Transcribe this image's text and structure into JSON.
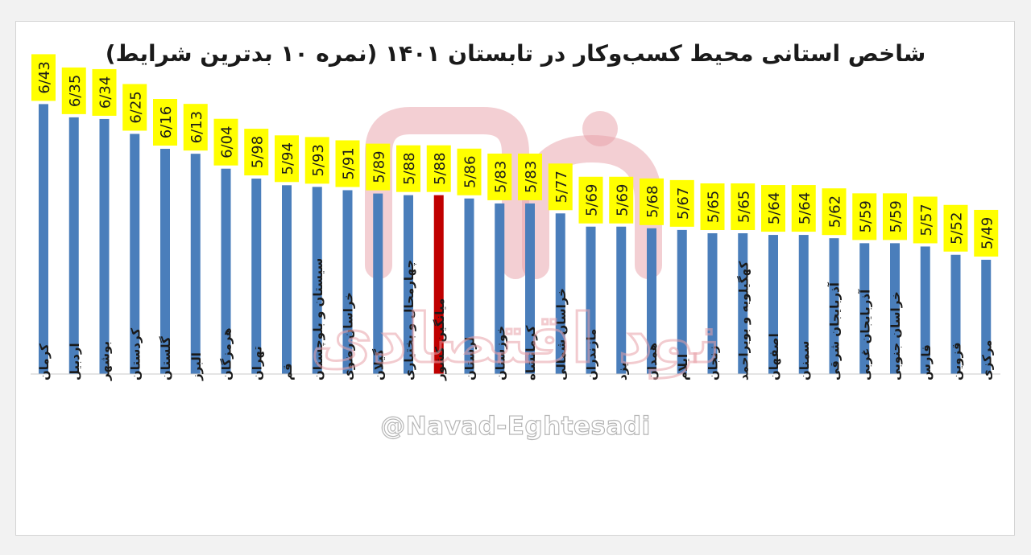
{
  "chart_data": {
    "type": "bar",
    "title": "شاخص استانی محیط کسب‌وکار در تابستان ۱۴۰۱ (نمره ۱۰ بدترین شرایط)",
    "categories": [
      "کرمان",
      "اردبیل",
      "بوشهر",
      "کردستان",
      "گلستان",
      "البرز",
      "هرمزگان",
      "تهران",
      "قم",
      "سیستان و بلوچستان",
      "خراسان رضوی",
      "گیلان",
      "چهارمحال و بختیاری",
      "میانگین کشور",
      "لرستان",
      "خوزستان",
      "کرمانشاه",
      "خراسان شمالی",
      "مازندران",
      "یزد",
      "همدان",
      "ایلام",
      "زنجان",
      "کهگیلویه و بویراحمد",
      "اصفهان",
      "سمنان",
      "آذربایجان شرقی",
      "آذربایجان غربی",
      "خراسان جنوبی",
      "فارس",
      "قزوین",
      "مرکزی"
    ],
    "values": [
      6.43,
      6.35,
      6.34,
      6.25,
      6.16,
      6.13,
      6.04,
      5.98,
      5.94,
      5.93,
      5.91,
      5.89,
      5.88,
      5.88,
      5.86,
      5.83,
      5.83,
      5.77,
      5.69,
      5.69,
      5.68,
      5.67,
      5.65,
      5.65,
      5.64,
      5.64,
      5.62,
      5.59,
      5.59,
      5.57,
      5.52,
      5.49
    ],
    "labels": [
      "6/43",
      "6/35",
      "6/34",
      "6/25",
      "6/16",
      "6/13",
      "6/04",
      "5/98",
      "5/94",
      "5/93",
      "5/91",
      "5/89",
      "5/88",
      "5/88",
      "5/86",
      "5/83",
      "5/83",
      "5/77",
      "5/69",
      "5/69",
      "5/68",
      "5/67",
      "5/65",
      "5/65",
      "5/64",
      "5/64",
      "5/62",
      "5/59",
      "5/59",
      "5/57",
      "5/52",
      "5/49"
    ],
    "highlight_index": 13,
    "ylim": [
      4.8,
      6.5
    ],
    "grid": false,
    "legend": "none",
    "colors": {
      "bar": "#4a7ebb",
      "highlight": "#c00000",
      "label_bg": "#ffff00",
      "text": "#1a1a1a"
    }
  },
  "watermark": {
    "text": "نود اقتصادی",
    "handle": "@Navad-Eghtesadi"
  }
}
